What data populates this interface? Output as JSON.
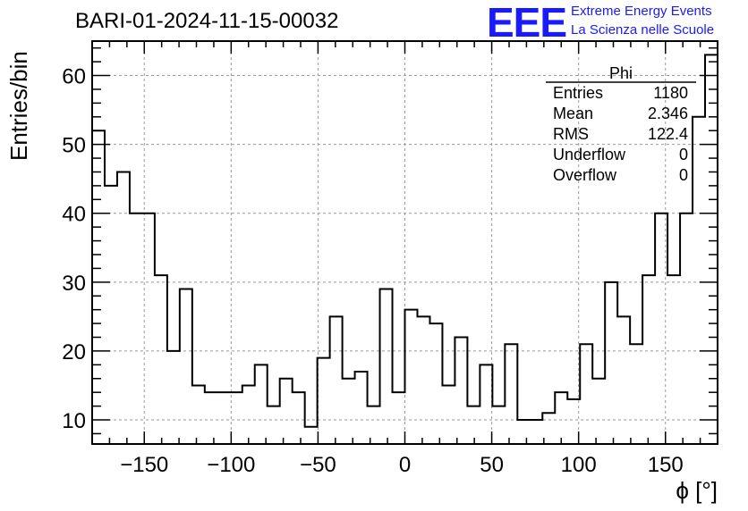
{
  "header": {
    "title": "BARI-01-2024-11-15-00032",
    "logo_text": "EEE",
    "logo_line1": "Extreme Energy Events",
    "logo_line2": "La Scienza nelle Scuole",
    "logo_color": "#1a1aff"
  },
  "stats": {
    "name": "Phi",
    "rows": [
      {
        "label": "Entries",
        "value": "1180"
      },
      {
        "label": "Mean",
        "value": "2.346"
      },
      {
        "label": "RMS",
        "value": "122.4"
      },
      {
        "label": "Underflow",
        "value": "0"
      },
      {
        "label": "Overflow",
        "value": "0"
      }
    ]
  },
  "chart_data": {
    "type": "histogram",
    "title": "BARI-01-2024-11-15-00032",
    "xlabel": "ϕ [°]",
    "ylabel": "Entries/bin",
    "xlim": [
      -180,
      180
    ],
    "ylim": [
      6.5,
      65
    ],
    "bin_width": 7.2,
    "values": [
      52,
      44,
      46,
      40,
      40,
      31,
      20,
      29,
      15,
      14,
      14,
      14,
      15,
      18,
      12,
      16,
      14,
      9,
      19,
      25,
      16,
      17,
      12,
      29,
      14,
      26,
      25,
      24,
      15,
      22,
      12,
      18,
      12,
      21,
      10,
      10,
      11,
      14,
      13,
      21,
      16,
      30,
      25,
      21,
      31,
      40,
      31,
      40,
      54,
      63
    ],
    "xticks": [
      -150,
      -100,
      -50,
      0,
      50,
      100,
      150
    ],
    "xtick_labels": [
      "−150",
      "−100",
      "−50",
      "0",
      "50",
      "100",
      "150"
    ],
    "yticks": [
      10,
      20,
      30,
      40,
      50,
      60
    ],
    "ytick_labels": [
      "10",
      "20",
      "30",
      "40",
      "50",
      "60"
    ],
    "grid": true
  }
}
